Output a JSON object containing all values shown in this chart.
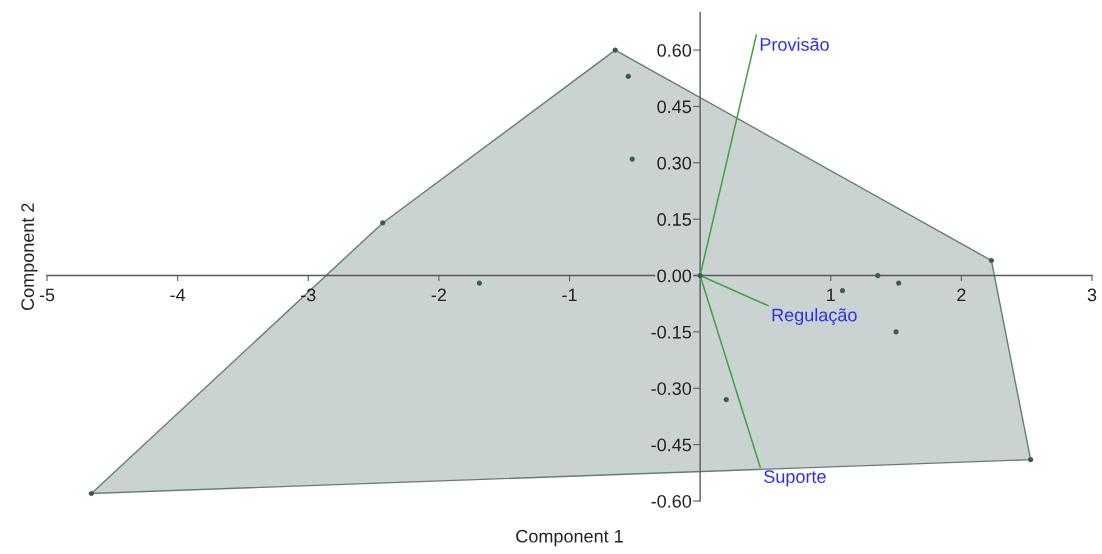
{
  "chart_data": {
    "type": "scatter",
    "xlabel": "Component 1",
    "ylabel": "Component 2",
    "xlim": [
      -5,
      3
    ],
    "ylim": [
      -0.6,
      0.7
    ],
    "xticks": [
      -5,
      -4,
      -3,
      -2,
      -1,
      1,
      2,
      3
    ],
    "yticks": [
      {
        "value": -0.6,
        "label": "-0.60"
      },
      {
        "value": -0.45,
        "label": "-0.45"
      },
      {
        "value": -0.3,
        "label": "-0.30"
      },
      {
        "value": -0.15,
        "label": "-0.15"
      },
      {
        "value": 0,
        "label": "0.00"
      },
      {
        "value": 0.15,
        "label": "0.15"
      },
      {
        "value": 0.3,
        "label": "0.30"
      },
      {
        "value": 0.45,
        "label": "0.45"
      },
      {
        "value": 0.6,
        "label": "0.60"
      }
    ],
    "series": [
      {
        "type": "area",
        "color": "#cbd3d2",
        "x": [
          -4.66,
          -2.43,
          -0.65,
          2.23,
          2.53
        ],
        "values": [
          -0.58,
          0.14,
          0.6,
          0.04,
          -0.49
        ]
      },
      {
        "color": "#3d5955",
        "marker": "circle",
        "x": [
          -4.66,
          -2.43,
          -1.69,
          -0.65,
          -0.55,
          -0.52,
          0.0,
          0.2,
          1.09,
          1.36,
          1.5,
          1.52,
          2.23,
          2.53
        ],
        "values": [
          -0.58,
          0.14,
          -0.02,
          0.6,
          0.53,
          0.31,
          0.0,
          -0.33,
          -0.04,
          0.0,
          -0.15,
          -0.02,
          0.04,
          -0.49
        ]
      },
      {
        "type": "line",
        "name": "Provisão",
        "color": "#45a045",
        "x": [
          0,
          0.43
        ],
        "values": [
          0,
          0.64
        ]
      },
      {
        "type": "line",
        "name": "Regulação",
        "color": "#45a045",
        "x": [
          0,
          0.52
        ],
        "values": [
          0,
          -0.08
        ]
      },
      {
        "type": "line",
        "name": "Suporte",
        "color": "#45a045",
        "x": [
          0,
          0.46
        ],
        "values": [
          0,
          -0.51
        ]
      }
    ]
  }
}
